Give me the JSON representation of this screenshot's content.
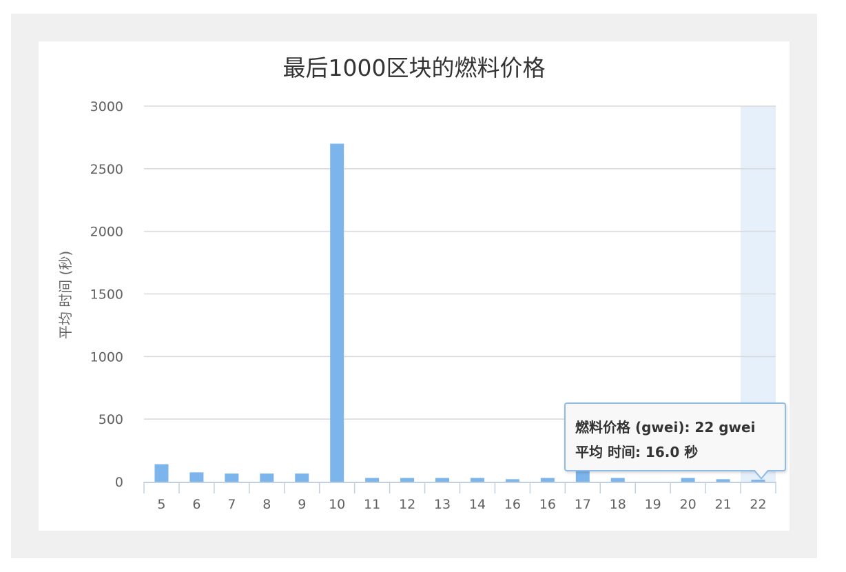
{
  "chart_data": {
    "type": "bar",
    "title": "最后1000区块的燃料价格",
    "xlabel": "",
    "ylabel": "平均 时间 (秒)",
    "categories": [
      "5",
      "6",
      "7",
      "8",
      "9",
      "10",
      "11",
      "12",
      "13",
      "14",
      "16",
      "16",
      "17",
      "18",
      "19",
      "20",
      "21",
      "22"
    ],
    "values": [
      140,
      75,
      65,
      65,
      65,
      2700,
      30,
      30,
      30,
      30,
      20,
      30,
      100,
      30,
      0,
      30,
      20,
      16
    ],
    "ylim": [
      0,
      3000
    ],
    "yticks": [
      "0",
      "500",
      "1000",
      "1500",
      "2000",
      "2500",
      "3000"
    ],
    "grid": true,
    "bar_color": "#7cb5ec",
    "highlight_index": 17,
    "highlight_color": "#e6f0fb"
  },
  "tooltip": {
    "line1": "燃料价格 (gwei): 22 gwei",
    "line2": "平均 时间: 16.0 秒"
  }
}
